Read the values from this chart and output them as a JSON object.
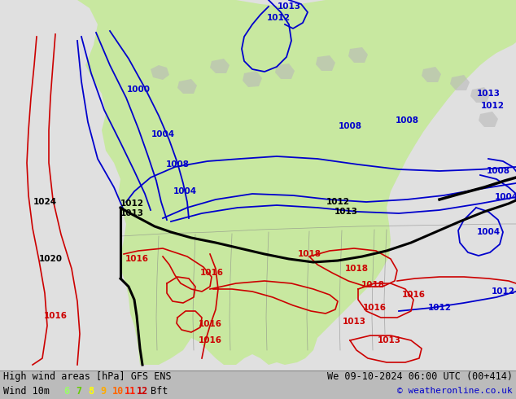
{
  "title_left": "High wind areas [hPa] GFS ENS",
  "title_right": "We 09-10-2024 06:00 UTC (00+414)",
  "subtitle_left": "Wind 10m",
  "subtitle_right": "© weatheronline.co.uk",
  "wind_labels": [
    "6",
    "7",
    "8",
    "9",
    "10",
    "11",
    "12"
  ],
  "wind_colors": [
    "#99ff66",
    "#66cc00",
    "#ffff00",
    "#ffaa00",
    "#ff6600",
    "#ff2200",
    "#cc0000"
  ],
  "wind_unit": "Bft",
  "bg_color": "#e0e0e0",
  "map_bg": "#e8e8e8",
  "bottom_bar_color": "#bbbbbb",
  "text_color": "#000000",
  "figsize": [
    6.34,
    4.9
  ],
  "dpi": 100,
  "land_color": "#c8e8a0",
  "ocean_color": "#e0e0e0",
  "green_high": "#b0e890",
  "isobar_blue": "#0000cc",
  "isobar_red": "#cc0000",
  "isobar_black": "#000000"
}
